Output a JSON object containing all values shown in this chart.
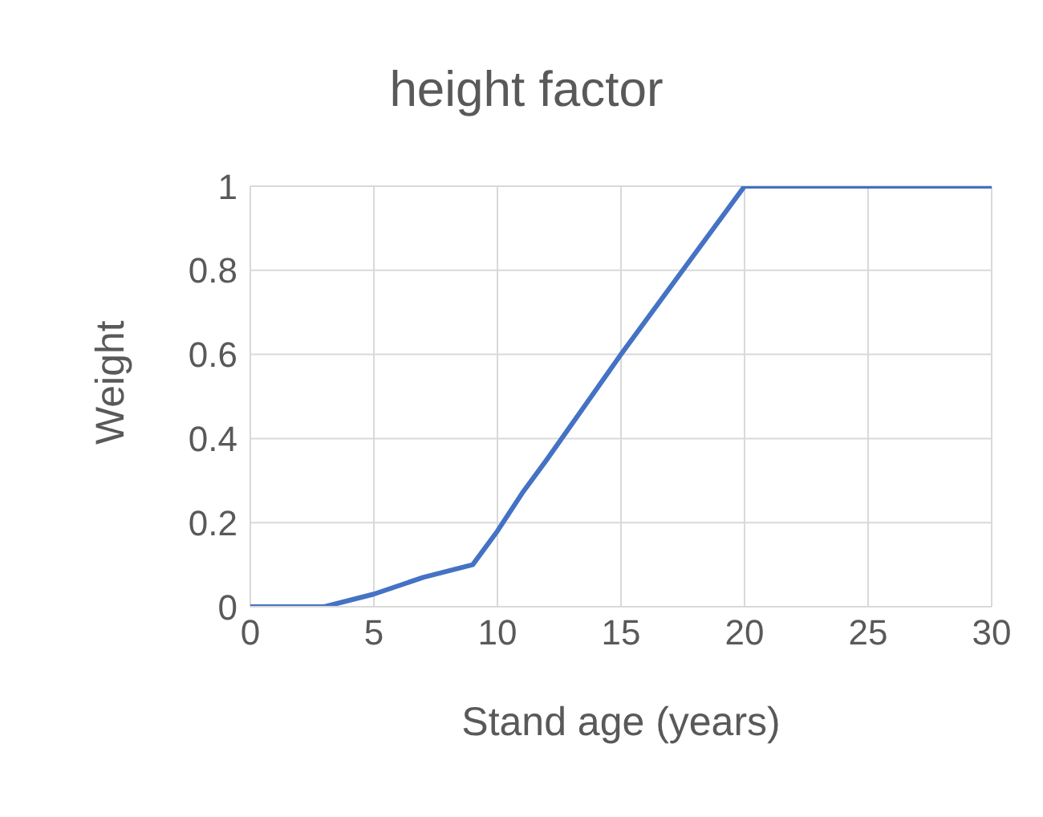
{
  "chart_data": {
    "type": "line",
    "title": "height factor",
    "xlabel": "Stand age (years)",
    "ylabel": "Weight",
    "x": [
      0,
      3,
      5,
      7,
      9,
      10,
      11,
      12,
      15,
      18,
      20,
      30
    ],
    "series": [
      {
        "color": "#4472c4",
        "values": [
          0,
          0,
          0.03,
          0.07,
          0.1,
          0.18,
          0.27,
          0.35,
          0.6,
          0.84,
          1,
          1
        ]
      }
    ],
    "xlim": [
      0,
      30
    ],
    "xticks": [
      0,
      5,
      10,
      15,
      20,
      25,
      30
    ],
    "ylim": [
      0,
      1
    ],
    "yticks": [
      0,
      0.2,
      0.4,
      0.6,
      0.8,
      1
    ],
    "grid": true,
    "legend": false,
    "marker": "none",
    "line_style": "solid"
  }
}
